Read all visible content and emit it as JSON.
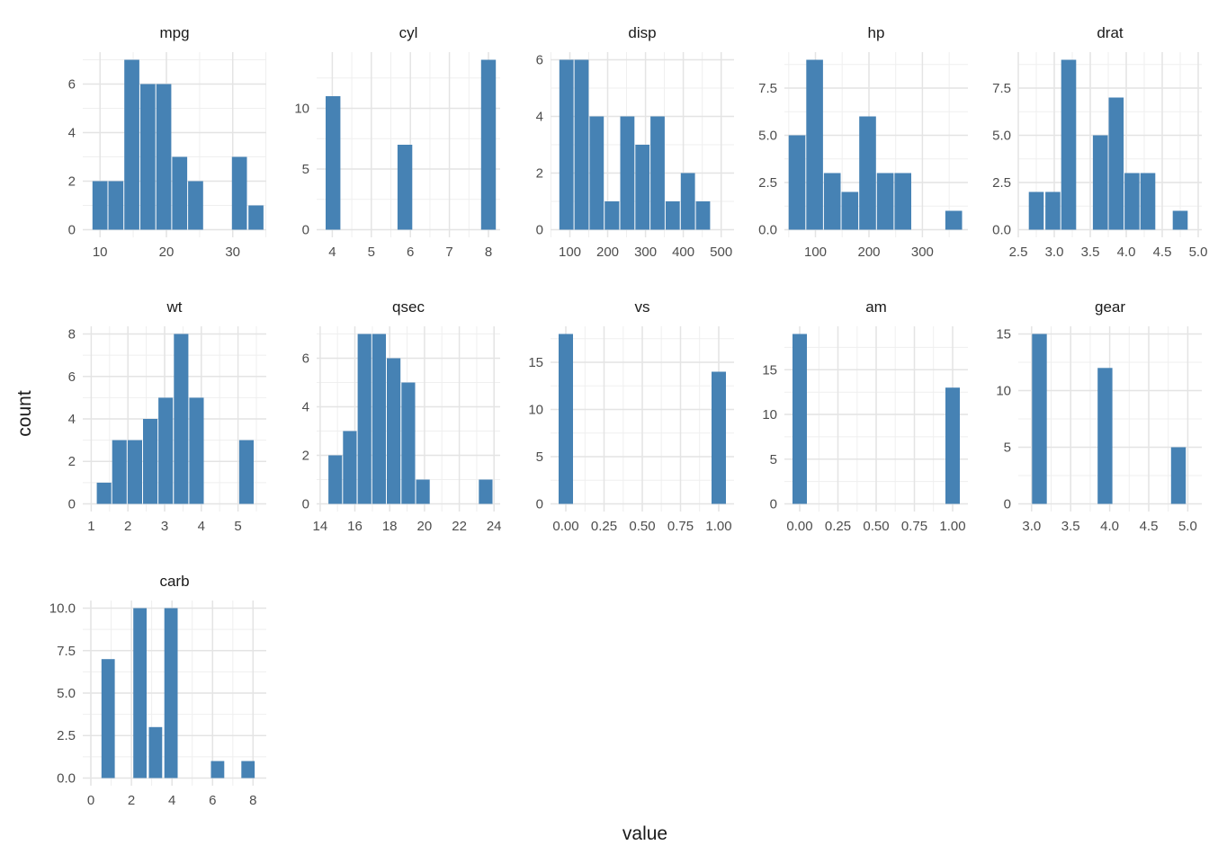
{
  "figure": {
    "x_axis_title": "value",
    "y_axis_title": "count",
    "bar_color": "#4682b4",
    "grid_major_color": "#e4e4e4",
    "grid_minor_color": "#efefef",
    "tick_label_color": "#4d4d4d",
    "title_color": "#1a1a1a",
    "background_color": "#ffffff",
    "facet_titles": [
      "mpg",
      "cyl",
      "disp",
      "hp",
      "drat",
      "wt",
      "qsec",
      "vs",
      "am",
      "gear",
      "carb"
    ]
  },
  "chart_data": [
    {
      "type": "histogram",
      "title": "mpg",
      "xlim": [
        7.4,
        35.05
      ],
      "ymax": 7,
      "xticks": [
        10,
        20,
        30
      ],
      "xtick_labels": [
        "10",
        "20",
        "30"
      ],
      "yticks": [
        0,
        2,
        4,
        6
      ],
      "ytick_labels": [
        "0",
        "2",
        "4",
        "6"
      ],
      "bars_format": "[x_start, x_end, count]",
      "bars": [
        [
          8.8,
          11.2,
          2
        ],
        [
          11.2,
          13.6,
          2
        ],
        [
          13.6,
          16.0,
          7
        ],
        [
          16.0,
          18.4,
          6
        ],
        [
          18.4,
          20.8,
          6
        ],
        [
          20.8,
          23.2,
          3
        ],
        [
          23.2,
          25.6,
          2
        ],
        [
          29.8,
          32.2,
          3
        ],
        [
          32.3,
          34.7,
          1
        ]
      ]
    },
    {
      "type": "histogram",
      "title": "cyl",
      "xlim": [
        3.6,
        8.3
      ],
      "ymax": 14,
      "xticks": [
        4,
        5,
        6,
        7,
        8
      ],
      "xtick_labels": [
        "4",
        "5",
        "6",
        "7",
        "8"
      ],
      "yticks": [
        0,
        5,
        10
      ],
      "ytick_labels": [
        "0",
        "5",
        "10"
      ],
      "bars_format": "[x_start, x_end, count]",
      "bars": [
        [
          3.82,
          4.22,
          11
        ],
        [
          5.66,
          6.06,
          7
        ],
        [
          7.8,
          8.2,
          14
        ]
      ]
    },
    {
      "type": "histogram",
      "title": "disp",
      "xlim": [
        49,
        534
      ],
      "ymax": 6,
      "xticks": [
        100,
        200,
        300,
        400,
        500
      ],
      "xtick_labels": [
        "100",
        "200",
        "300",
        "400",
        "500"
      ],
      "yticks": [
        0,
        2,
        4,
        6
      ],
      "ytick_labels": [
        "0",
        "2",
        "4",
        "6"
      ],
      "bars_format": "[x_start, x_end, count]",
      "bars": [
        [
          71,
          111,
          6
        ],
        [
          111,
          151,
          6
        ],
        [
          151,
          191,
          4
        ],
        [
          191,
          232,
          1
        ],
        [
          232,
          272,
          4
        ],
        [
          272,
          312,
          3
        ],
        [
          312,
          352,
          4
        ],
        [
          352,
          392,
          1
        ],
        [
          392,
          432,
          2
        ],
        [
          432,
          472,
          1
        ]
      ]
    },
    {
      "type": "histogram",
      "title": "hp",
      "xlim": [
        42,
        385
      ],
      "ymax": 9,
      "xticks": [
        100,
        200,
        300
      ],
      "xtick_labels": [
        "100",
        "200",
        "300"
      ],
      "yticks": [
        0,
        2.5,
        5,
        7.5
      ],
      "ytick_labels": [
        "0.0",
        "2.5",
        "5.0",
        "7.5"
      ],
      "bars_format": "[x_start, x_end, count]",
      "bars": [
        [
          49,
          82,
          5
        ],
        [
          82,
          115,
          9
        ],
        [
          115,
          148,
          3
        ],
        [
          148,
          181,
          2
        ],
        [
          181,
          214,
          6
        ],
        [
          214,
          247,
          3
        ],
        [
          247,
          280,
          3
        ],
        [
          342,
          375,
          1
        ]
      ]
    },
    {
      "type": "histogram",
      "title": "drat",
      "xlim": [
        2.5,
        5.05
      ],
      "ymax": 9,
      "xticks": [
        2.5,
        3.0,
        3.5,
        4.0,
        4.5,
        5.0
      ],
      "xtick_labels": [
        "2.5",
        "3.0",
        "3.5",
        "4.0",
        "4.5",
        "5.0"
      ],
      "yticks": [
        0,
        2.5,
        5,
        7.5
      ],
      "ytick_labels": [
        "0.0",
        "2.5",
        "5.0",
        "7.5"
      ],
      "bars_format": "[x_start, x_end, count]",
      "bars": [
        [
          2.64,
          2.86,
          2
        ],
        [
          2.87,
          3.09,
          2
        ],
        [
          3.09,
          3.31,
          9
        ],
        [
          3.53,
          3.75,
          5
        ],
        [
          3.75,
          3.97,
          7
        ],
        [
          3.97,
          4.19,
          3
        ],
        [
          4.19,
          4.41,
          3
        ],
        [
          4.64,
          4.86,
          1
        ]
      ]
    },
    {
      "type": "histogram",
      "title": "wt",
      "xlim": [
        0.77,
        5.77
      ],
      "ymax": 8,
      "xticks": [
        1,
        2,
        3,
        4,
        5
      ],
      "xtick_labels": [
        "1",
        "2",
        "3",
        "4",
        "5"
      ],
      "yticks": [
        0,
        2,
        4,
        6,
        8
      ],
      "ytick_labels": [
        "0",
        "2",
        "4",
        "6",
        "8"
      ],
      "bars_format": "[x_start, x_end, count]",
      "bars": [
        [
          1.14,
          1.56,
          1
        ],
        [
          1.56,
          1.98,
          3
        ],
        [
          1.98,
          2.4,
          3
        ],
        [
          2.4,
          2.82,
          4
        ],
        [
          2.82,
          3.24,
          5
        ],
        [
          3.24,
          3.66,
          8
        ],
        [
          3.66,
          4.08,
          5
        ],
        [
          5.02,
          5.44,
          3
        ]
      ]
    },
    {
      "type": "histogram",
      "title": "qsec",
      "xlim": [
        13.8,
        24.35
      ],
      "ymax": 7,
      "xticks": [
        14,
        16,
        18,
        20,
        22,
        24
      ],
      "xtick_labels": [
        "14",
        "16",
        "18",
        "20",
        "22",
        "24"
      ],
      "yticks": [
        0,
        2,
        4,
        6
      ],
      "ytick_labels": [
        "0",
        "2",
        "4",
        "6"
      ],
      "bars_format": "[x_start, x_end, count]",
      "bars": [
        [
          14.45,
          15.29,
          2
        ],
        [
          15.29,
          16.13,
          3
        ],
        [
          16.13,
          16.97,
          7
        ],
        [
          16.97,
          17.81,
          7
        ],
        [
          17.81,
          18.65,
          6
        ],
        [
          18.65,
          19.49,
          5
        ],
        [
          19.49,
          20.33,
          1
        ],
        [
          23.1,
          23.94,
          1
        ]
      ]
    },
    {
      "type": "histogram",
      "title": "vs",
      "xlim": [
        -0.1,
        1.1
      ],
      "ymax": 18,
      "xticks": [
        0,
        0.25,
        0.5,
        0.75,
        1
      ],
      "xtick_labels": [
        "0.00",
        "0.25",
        "0.50",
        "0.75",
        "1.00"
      ],
      "yticks": [
        0,
        5,
        10,
        15
      ],
      "ytick_labels": [
        "0",
        "5",
        "10",
        "15"
      ],
      "bars_format": "[x_start, x_end, count]",
      "bars": [
        [
          -0.05,
          0.05,
          18
        ],
        [
          0.95,
          1.05,
          14
        ]
      ]
    },
    {
      "type": "histogram",
      "title": "am",
      "xlim": [
        -0.1,
        1.1
      ],
      "ymax": 19,
      "xticks": [
        0,
        0.25,
        0.5,
        0.75,
        1
      ],
      "xtick_labels": [
        "0.00",
        "0.25",
        "0.50",
        "0.75",
        "1.00"
      ],
      "yticks": [
        0,
        5,
        10,
        15
      ],
      "ytick_labels": [
        "0",
        "5",
        "10",
        "15"
      ],
      "bars_format": "[x_start, x_end, count]",
      "bars": [
        [
          -0.05,
          0.05,
          19
        ],
        [
          0.95,
          1.05,
          13
        ]
      ]
    },
    {
      "type": "histogram",
      "title": "gear",
      "xlim": [
        2.83,
        5.18
      ],
      "ymax": 15,
      "xticks": [
        3.0,
        3.5,
        4.0,
        4.5,
        5.0
      ],
      "xtick_labels": [
        "3.0",
        "3.5",
        "4.0",
        "4.5",
        "5.0"
      ],
      "yticks": [
        0,
        5,
        10,
        15
      ],
      "ytick_labels": [
        "0",
        "5",
        "10",
        "15"
      ],
      "bars_format": "[x_start, x_end, count]",
      "bars": [
        [
          3.0,
          3.2,
          15
        ],
        [
          3.84,
          4.04,
          12
        ],
        [
          4.78,
          4.98,
          5
        ]
      ]
    },
    {
      "type": "histogram",
      "title": "carb",
      "xlim": [
        -0.4,
        8.65
      ],
      "ymax": 10,
      "xticks": [
        0,
        2,
        4,
        6,
        8
      ],
      "xtick_labels": [
        "0",
        "2",
        "4",
        "6",
        "8"
      ],
      "yticks": [
        0,
        2.5,
        5,
        7.5,
        10
      ],
      "ytick_labels": [
        "0.0",
        "2.5",
        "5.0",
        "7.5",
        "10.0"
      ],
      "bars_format": "[x_start, x_end, count]",
      "bars": [
        [
          0.5,
          1.2,
          7
        ],
        [
          2.07,
          2.77,
          10
        ],
        [
          2.84,
          3.54,
          3
        ],
        [
          3.6,
          4.3,
          10
        ],
        [
          5.9,
          6.6,
          1
        ],
        [
          7.4,
          8.1,
          1
        ]
      ]
    }
  ]
}
